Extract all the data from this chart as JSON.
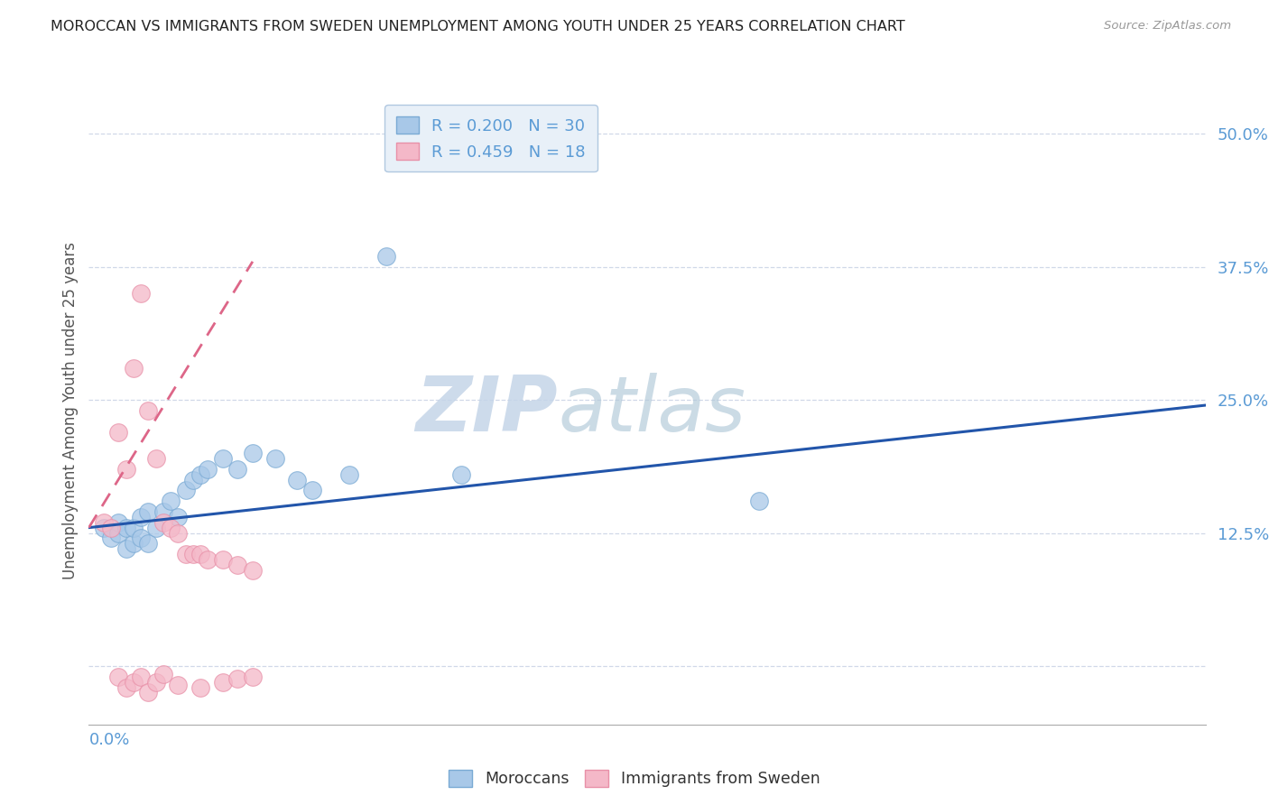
{
  "title": "MOROCCAN VS IMMIGRANTS FROM SWEDEN UNEMPLOYMENT AMONG YOUTH UNDER 25 YEARS CORRELATION CHART",
  "source": "Source: ZipAtlas.com",
  "ylabel": "Unemployment Among Youth under 25 years",
  "yticks": [
    0.0,
    0.125,
    0.25,
    0.375,
    0.5
  ],
  "ytick_labels": [
    "",
    "12.5%",
    "25.0%",
    "37.5%",
    "50.0%"
  ],
  "xlim": [
    0.0,
    0.15
  ],
  "ylim": [
    -0.055,
    0.535
  ],
  "watermark_zip": "ZIP",
  "watermark_atlas": "atlas",
  "legend1_r": "0.200",
  "legend1_n": "30",
  "legend2_r": "0.459",
  "legend2_n": "18",
  "moroccan_color": "#a8c8e8",
  "sweden_color": "#f4b8c8",
  "moroccan_edge": "#7aaad4",
  "sweden_edge": "#e890a8",
  "moroccan_x": [
    0.002,
    0.003,
    0.004,
    0.004,
    0.005,
    0.005,
    0.006,
    0.006,
    0.007,
    0.007,
    0.008,
    0.008,
    0.009,
    0.01,
    0.011,
    0.012,
    0.013,
    0.014,
    0.015,
    0.016,
    0.018,
    0.02,
    0.022,
    0.025,
    0.028,
    0.03,
    0.035,
    0.04,
    0.05,
    0.09
  ],
  "moroccan_y": [
    0.13,
    0.12,
    0.135,
    0.125,
    0.11,
    0.13,
    0.115,
    0.13,
    0.12,
    0.14,
    0.115,
    0.145,
    0.13,
    0.145,
    0.155,
    0.14,
    0.165,
    0.175,
    0.18,
    0.185,
    0.195,
    0.185,
    0.2,
    0.195,
    0.175,
    0.165,
    0.18,
    0.385,
    0.18,
    0.155
  ],
  "moroccan_y_neg": [
    0.0,
    0.0,
    0.0,
    0.0,
    0.0,
    0.0,
    0.0,
    0.0,
    0.0,
    0.0,
    0.0,
    0.0,
    0.0,
    0.0,
    0.0,
    0.0,
    0.0,
    0.0,
    0.0,
    0.0,
    0.0,
    0.0,
    0.0,
    0.0,
    0.0,
    0.0,
    0.0,
    0.0,
    0.0,
    0.0
  ],
  "swedish_neg_x": [
    0.004,
    0.005,
    0.006,
    0.007,
    0.008,
    0.009,
    0.01,
    0.012,
    0.015,
    0.018,
    0.02,
    0.022
  ],
  "swedish_neg_y": [
    -0.01,
    -0.02,
    -0.015,
    -0.01,
    -0.025,
    -0.015,
    -0.008,
    -0.018,
    -0.02,
    -0.015,
    -0.012,
    -0.01
  ],
  "sweden_x": [
    0.002,
    0.003,
    0.004,
    0.005,
    0.006,
    0.007,
    0.008,
    0.009,
    0.01,
    0.011,
    0.012,
    0.013,
    0.014,
    0.015,
    0.016,
    0.018,
    0.02,
    0.022
  ],
  "sweden_y": [
    0.135,
    0.13,
    0.22,
    0.185,
    0.28,
    0.35,
    0.24,
    0.195,
    0.135,
    0.13,
    0.125,
    0.105,
    0.105,
    0.105,
    0.1,
    0.1,
    0.095,
    0.09
  ],
  "moroccan_trend_x": [
    0.0,
    0.15
  ],
  "moroccan_trend_y": [
    0.13,
    0.245
  ],
  "sweden_trend_x": [
    0.0,
    0.022
  ],
  "sweden_trend_y": [
    0.13,
    0.38
  ],
  "bg_color": "#ffffff",
  "grid_color": "#d0d8e8",
  "title_color": "#222222",
  "axis_label_color": "#555555",
  "tick_color": "#5b9bd5",
  "legend_facecolor": "#e8f0f8",
  "legend_edgecolor": "#b0c8e0"
}
